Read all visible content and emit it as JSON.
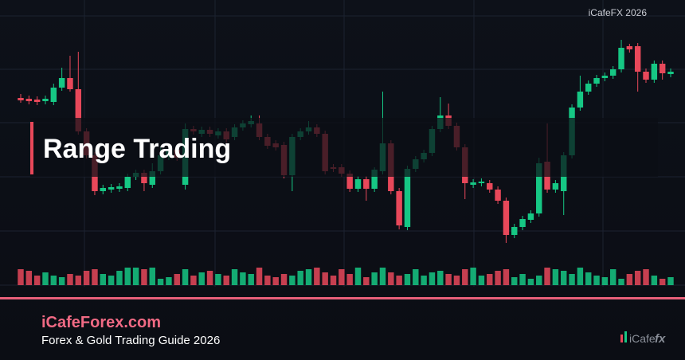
{
  "chart_data": {
    "type": "candlestick",
    "title": "Range Trading",
    "up_color": "#16c784",
    "down_color": "#e8485a",
    "ylim": [
      0,
      300
    ],
    "open": [
      197,
      196,
      195,
      193,
      192,
      210,
      222,
      208,
      155,
      125,
      80,
      82,
      83,
      84,
      98,
      103,
      88,
      105,
      123,
      132,
      88,
      158,
      152,
      157,
      150,
      155,
      148,
      160,
      164,
      165,
      148,
      140,
      138,
      100,
      148,
      155,
      160,
      152,
      110,
      110,
      102,
      83,
      95,
      83,
      105,
      140,
      80,
      35,
      108,
      120,
      128,
      158,
      175,
      162,
      135,
      88,
      90,
      90,
      82,
      68,
      25,
      35,
      44,
      52,
      117,
      82,
      80,
      125,
      185,
      205,
      215,
      222,
      225,
      233,
      262,
      262,
      230,
      220,
      240,
      227
    ],
    "high": [
      202,
      200,
      199,
      200,
      215,
      235,
      250,
      255,
      159,
      129,
      88,
      89,
      90,
      102,
      107,
      107,
      115,
      135,
      136,
      136,
      165,
      162,
      161,
      161,
      159,
      159,
      164,
      169,
      175,
      175,
      152,
      144,
      142,
      152,
      159,
      168,
      164,
      156,
      114,
      114,
      106,
      99,
      99,
      110,
      205,
      144,
      84,
      112,
      124,
      132,
      162,
      198,
      190,
      166,
      139,
      95,
      96,
      94,
      86,
      72,
      39,
      49,
      56,
      122,
      165,
      94,
      129,
      189,
      225,
      219,
      226,
      229,
      237,
      270,
      265,
      266,
      234,
      244,
      244,
      234
    ],
    "low": [
      191,
      189,
      188,
      189,
      188,
      206,
      205,
      151,
      121,
      75,
      76,
      78,
      79,
      80,
      94,
      80,
      84,
      101,
      119,
      118,
      82,
      151,
      148,
      148,
      146,
      141,
      144,
      156,
      160,
      144,
      133,
      131,
      96,
      80,
      144,
      151,
      148,
      101,
      104,
      98,
      79,
      79,
      68,
      79,
      101,
      76,
      32,
      31,
      104,
      116,
      124,
      154,
      158,
      131,
      70,
      84,
      86,
      78,
      64,
      15,
      21,
      31,
      40,
      48,
      78,
      78,
      50,
      121,
      181,
      201,
      211,
      218,
      221,
      229,
      254,
      205,
      216,
      216,
      220,
      223
    ],
    "close": [
      194,
      193,
      192,
      196,
      210,
      222,
      208,
      155,
      125,
      80,
      84,
      85,
      86,
      98,
      103,
      90,
      105,
      125,
      132,
      122,
      158,
      155,
      157,
      152,
      155,
      145,
      160,
      165,
      168,
      148,
      137,
      135,
      100,
      148,
      155,
      160,
      152,
      105,
      108,
      102,
      83,
      95,
      83,
      107,
      140,
      80,
      37,
      108,
      120,
      128,
      158,
      175,
      162,
      135,
      90,
      91,
      92,
      82,
      68,
      25,
      35,
      45,
      52,
      115,
      82,
      90,
      125,
      185,
      205,
      215,
      222,
      225,
      233,
      260,
      258,
      230,
      220,
      240,
      228,
      230
    ],
    "volume": [
      20,
      18,
      12,
      16,
      12,
      10,
      14,
      12,
      18,
      20,
      14,
      12,
      18,
      22,
      22,
      20,
      22,
      8,
      10,
      14,
      20,
      12,
      16,
      18,
      14,
      12,
      20,
      16,
      14,
      22,
      12,
      10,
      14,
      12,
      18,
      20,
      22,
      16,
      12,
      20,
      14,
      22,
      10,
      16,
      22,
      16,
      12,
      14,
      20,
      12,
      16,
      18,
      14,
      12,
      20,
      22,
      12,
      14,
      18,
      20,
      10,
      14,
      8,
      12,
      22,
      20,
      18,
      14,
      22,
      16,
      12,
      10,
      20,
      8,
      14,
      18,
      20,
      12,
      8,
      10
    ],
    "watermark": "iCafeFX 2026"
  },
  "footer": {
    "site": "iCafeForex.com",
    "subtitle": "Forex & Gold Trading Guide 2026",
    "logo_a": "iCafe",
    "logo_b": "fx"
  }
}
